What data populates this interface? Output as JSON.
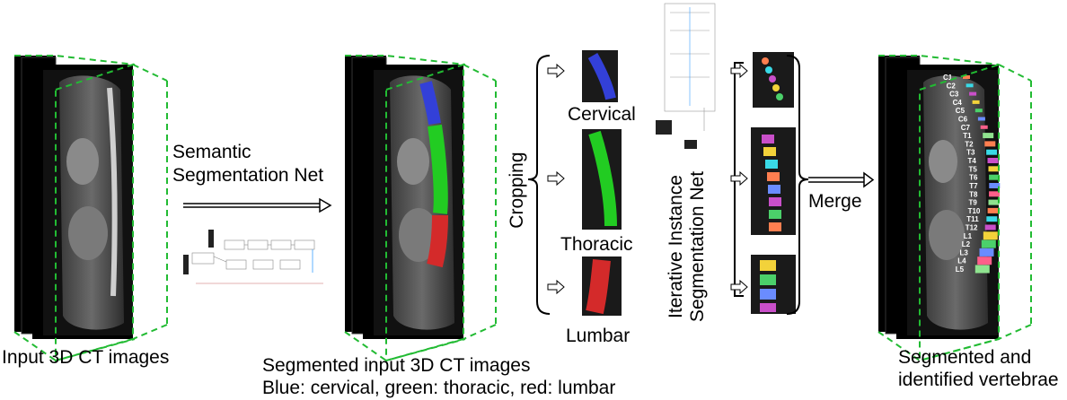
{
  "labels": {
    "input": "Input 3D CT images",
    "semantic_net": [
      "Semantic",
      "Segmentation Net"
    ],
    "segmented_input": "Segmented input 3D CT images",
    "color_legend": "Blue: cervical, green: thoracic, red: lumbar",
    "cropping": "Cropping",
    "cervical": "Cervical",
    "thoracic": "Thoracic",
    "lumbar": "Lumbar",
    "iterative_net": [
      "Iterative Instance",
      "Segmentation Net"
    ],
    "merge": "Merge",
    "output": [
      "Segmented and",
      "identified vertebrae"
    ]
  },
  "vertebra_labels": [
    "C1",
    "C2",
    "C3",
    "C4",
    "C5",
    "C6",
    "C7",
    "T1",
    "T2",
    "T3",
    "T4",
    "T5",
    "T6",
    "T7",
    "T8",
    "T9",
    "T10",
    "T11",
    "T12",
    "L1",
    "L2",
    "L3",
    "L4",
    "L5"
  ],
  "colors": {
    "cervical": "#3340d8",
    "thoracic": "#22cc22",
    "lumbar": "#d42a2a",
    "frame_dash": "#22bb33"
  }
}
